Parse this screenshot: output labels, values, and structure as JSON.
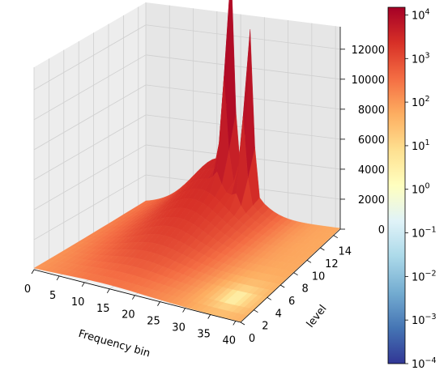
{
  "chart_data": {
    "type": "surface3d",
    "title": "",
    "xlabel": "Frequency bin",
    "ylabel": "level",
    "zlabel": "",
    "x_ticks": [
      "0",
      "5",
      "10",
      "15",
      "20",
      "25",
      "30",
      "35",
      "40"
    ],
    "y_ticks": [
      "0",
      "2",
      "4",
      "6",
      "8",
      "10",
      "12",
      "14"
    ],
    "z_ticks": [
      "0",
      "2000",
      "4000",
      "6000",
      "8000",
      "10000",
      "12000"
    ],
    "xlim": [
      0,
      41
    ],
    "ylim": [
      0,
      15
    ],
    "zlim": [
      0,
      13500
    ],
    "grid": true,
    "colormap": "RdYlBu_r",
    "color_scale": "log",
    "colorbar": {
      "ticks": [
        "10^{-4}",
        "10^{-3}",
        "10^{-2}",
        "10^{-1}",
        "10^{0}",
        "10^{1}",
        "10^{2}",
        "10^{3}",
        "10^{4}"
      ],
      "range": [
        0.0001,
        15000
      ]
    },
    "peaks": [
      {
        "frequency_bin": 18,
        "level": 15,
        "value": 13000
      },
      {
        "frequency_bin": 22,
        "level": 15,
        "value": 10500
      }
    ],
    "grid_shape": {
      "frequency_bins": 42,
      "levels": 16
    }
  }
}
